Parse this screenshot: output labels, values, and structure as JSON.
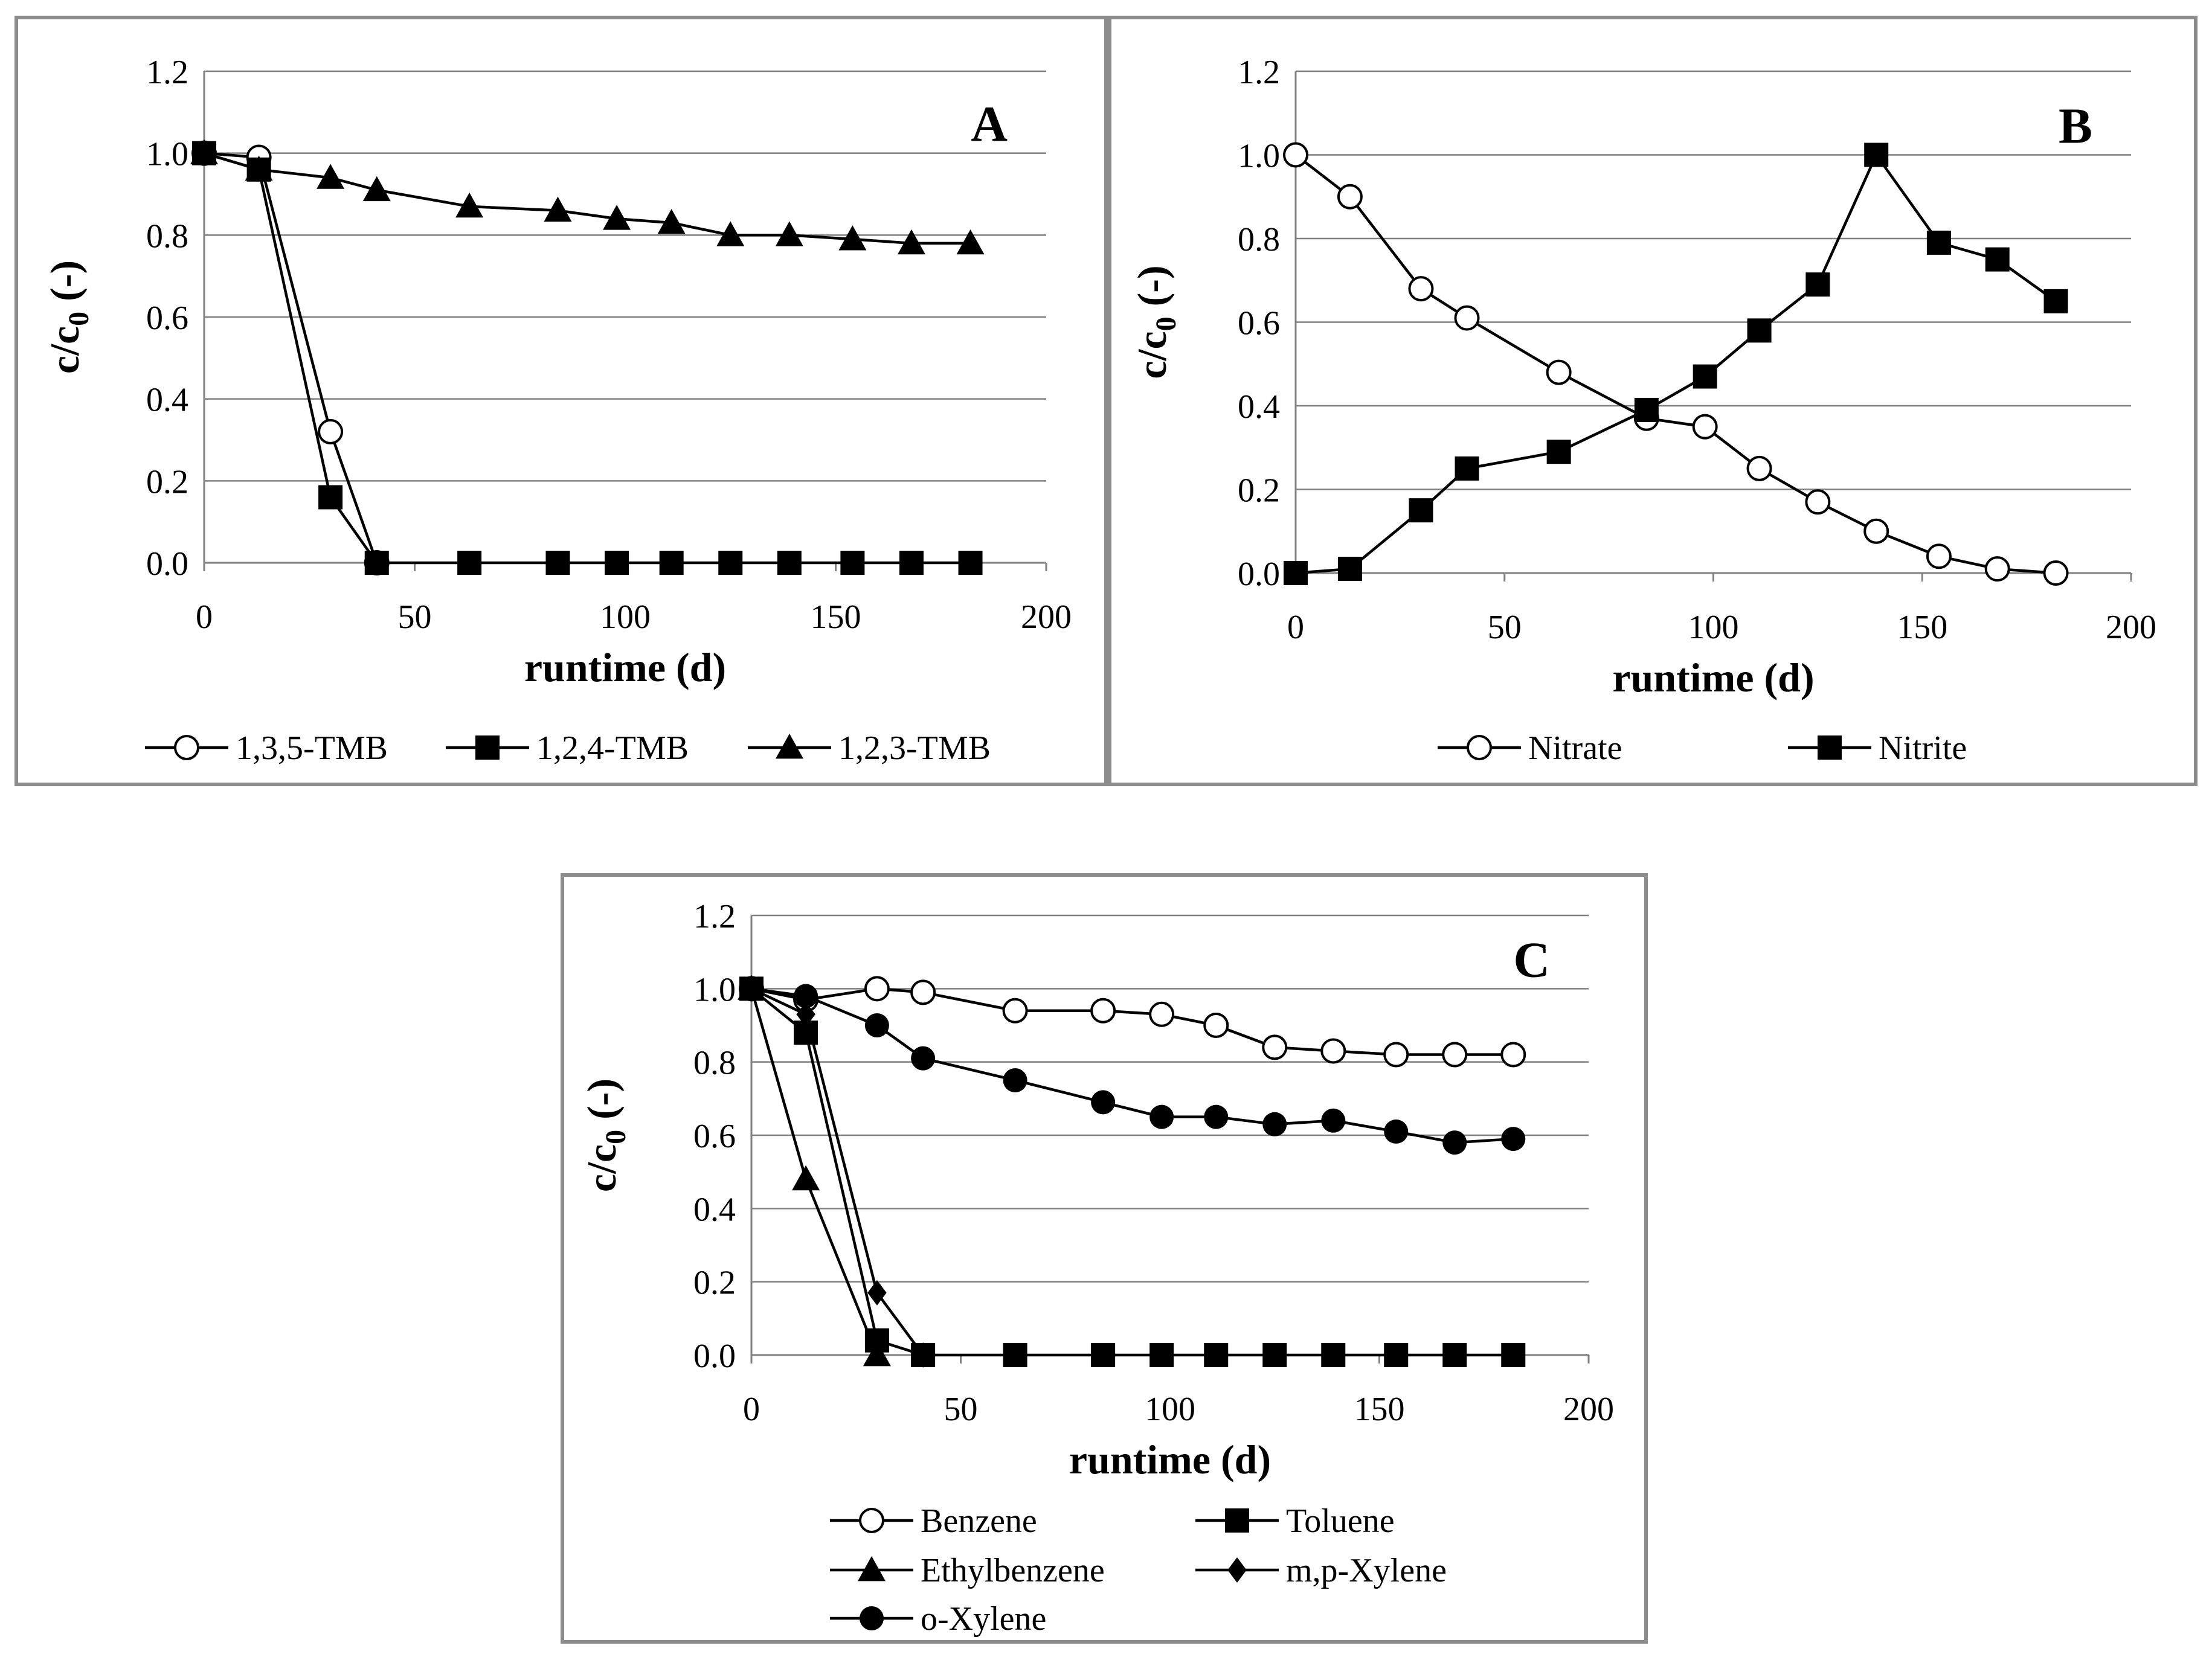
{
  "colors": {
    "line": "#000000",
    "grid": "#808080",
    "border": "#8c8c8c",
    "background": "#ffffff"
  },
  "chart_data": [
    {
      "type": "line",
      "panel_label": "A",
      "xlabel": "runtime (d)",
      "ylabel": "c/c0 (-)",
      "ylabel_main": "c/c",
      "ylabel_sub": "0",
      "ylabel_tail": " (-)",
      "xlim": [
        0,
        200
      ],
      "ylim": [
        0,
        1.2
      ],
      "x_ticks": [
        "0",
        "50",
        "100",
        "150",
        "200"
      ],
      "y_ticks": [
        "0.0",
        "0.2",
        "0.4",
        "0.6",
        "0.8",
        "1.0",
        "1.2"
      ],
      "grid": "horizontal",
      "legend_position": "bottom",
      "series": [
        {
          "name": "1,3,5-TMB",
          "marker": "circle-open",
          "x": [
            0,
            13,
            30,
            41
          ],
          "y": [
            1.0,
            0.99,
            0.32,
            0.0
          ]
        },
        {
          "name": "1,2,4-TMB",
          "marker": "square",
          "x": [
            0,
            13,
            30,
            41,
            63,
            84,
            98,
            111,
            125,
            139,
            154,
            168,
            182
          ],
          "y": [
            1.0,
            0.96,
            0.16,
            0.0,
            0.0,
            0.0,
            0.0,
            0.0,
            0.0,
            0.0,
            0.0,
            0.0,
            0.0
          ]
        },
        {
          "name": "1,2,3-TMB",
          "marker": "triangle",
          "x": [
            0,
            13,
            30,
            41,
            63,
            84,
            98,
            111,
            125,
            139,
            154,
            168,
            182
          ],
          "y": [
            1.0,
            0.96,
            0.94,
            0.91,
            0.87,
            0.86,
            0.84,
            0.83,
            0.8,
            0.8,
            0.79,
            0.78,
            0.78
          ]
        }
      ]
    },
    {
      "type": "line",
      "panel_label": "B",
      "xlabel": "runtime (d)",
      "ylabel": "c/c0 (-)",
      "ylabel_main": "c/c",
      "ylabel_sub": "0",
      "ylabel_tail": " (-)",
      "xlim": [
        0,
        200
      ],
      "ylim": [
        0,
        1.2
      ],
      "x_ticks": [
        "0",
        "50",
        "100",
        "150",
        "200"
      ],
      "y_ticks": [
        "0.0",
        "0.2",
        "0.4",
        "0.6",
        "0.8",
        "1.0",
        "1.2"
      ],
      "grid": "horizontal",
      "legend_position": "bottom",
      "series": [
        {
          "name": "Nitrate",
          "marker": "circle-open",
          "x": [
            0,
            13,
            30,
            41,
            63,
            84,
            98,
            111,
            125,
            139,
            154,
            168,
            182
          ],
          "y": [
            1.0,
            0.9,
            0.68,
            0.61,
            0.48,
            0.37,
            0.35,
            0.25,
            0.17,
            0.1,
            0.04,
            0.01,
            0.0
          ]
        },
        {
          "name": "Nitrite",
          "marker": "square",
          "x": [
            0,
            13,
            30,
            41,
            63,
            84,
            98,
            111,
            125,
            139,
            154,
            168,
            182
          ],
          "y": [
            0.0,
            0.01,
            0.15,
            0.25,
            0.29,
            0.39,
            0.47,
            0.58,
            0.69,
            1.0,
            0.79,
            0.75,
            0.65
          ]
        }
      ]
    },
    {
      "type": "line",
      "panel_label": "C",
      "xlabel": "runtime (d)",
      "ylabel": "c/c0 (-)",
      "ylabel_main": "c/c",
      "ylabel_sub": "0",
      "ylabel_tail": " (-)",
      "xlim": [
        0,
        200
      ],
      "ylim": [
        0,
        1.2
      ],
      "x_ticks": [
        "0",
        "50",
        "100",
        "150",
        "200"
      ],
      "y_ticks": [
        "0.0",
        "0.2",
        "0.4",
        "0.6",
        "0.8",
        "1.0",
        "1.2"
      ],
      "grid": "horizontal",
      "legend_position": "bottom",
      "series": [
        {
          "name": "Benzene",
          "marker": "circle-open",
          "x": [
            0,
            13,
            30,
            41,
            63,
            84,
            98,
            111,
            125,
            139,
            154,
            168,
            182
          ],
          "y": [
            1.0,
            0.97,
            1.0,
            0.99,
            0.94,
            0.94,
            0.93,
            0.9,
            0.84,
            0.83,
            0.82,
            0.82,
            0.82
          ]
        },
        {
          "name": "Toluene",
          "marker": "square",
          "x": [
            0,
            13,
            30,
            41,
            63,
            84,
            98,
            111,
            125,
            139,
            154,
            168,
            182
          ],
          "y": [
            1.0,
            0.88,
            0.04,
            0.0,
            0.0,
            0.0,
            0.0,
            0.0,
            0.0,
            0.0,
            0.0,
            0.0,
            0.0
          ]
        },
        {
          "name": "Ethylbenzene",
          "marker": "triangle",
          "x": [
            0,
            13,
            30
          ],
          "y": [
            1.0,
            0.48,
            0.0
          ]
        },
        {
          "name": "m,p-Xylene",
          "marker": "diamond",
          "x": [
            0,
            13,
            30,
            41
          ],
          "y": [
            1.0,
            0.93,
            0.17,
            0.0
          ]
        },
        {
          "name": "o-Xylene",
          "marker": "circle-filled",
          "x": [
            0,
            13,
            30,
            41,
            63,
            84,
            98,
            111,
            125,
            139,
            154,
            168,
            182
          ],
          "y": [
            1.0,
            0.98,
            0.9,
            0.81,
            0.75,
            0.69,
            0.65,
            0.65,
            0.63,
            0.64,
            0.61,
            0.58,
            0.59
          ]
        }
      ]
    }
  ]
}
